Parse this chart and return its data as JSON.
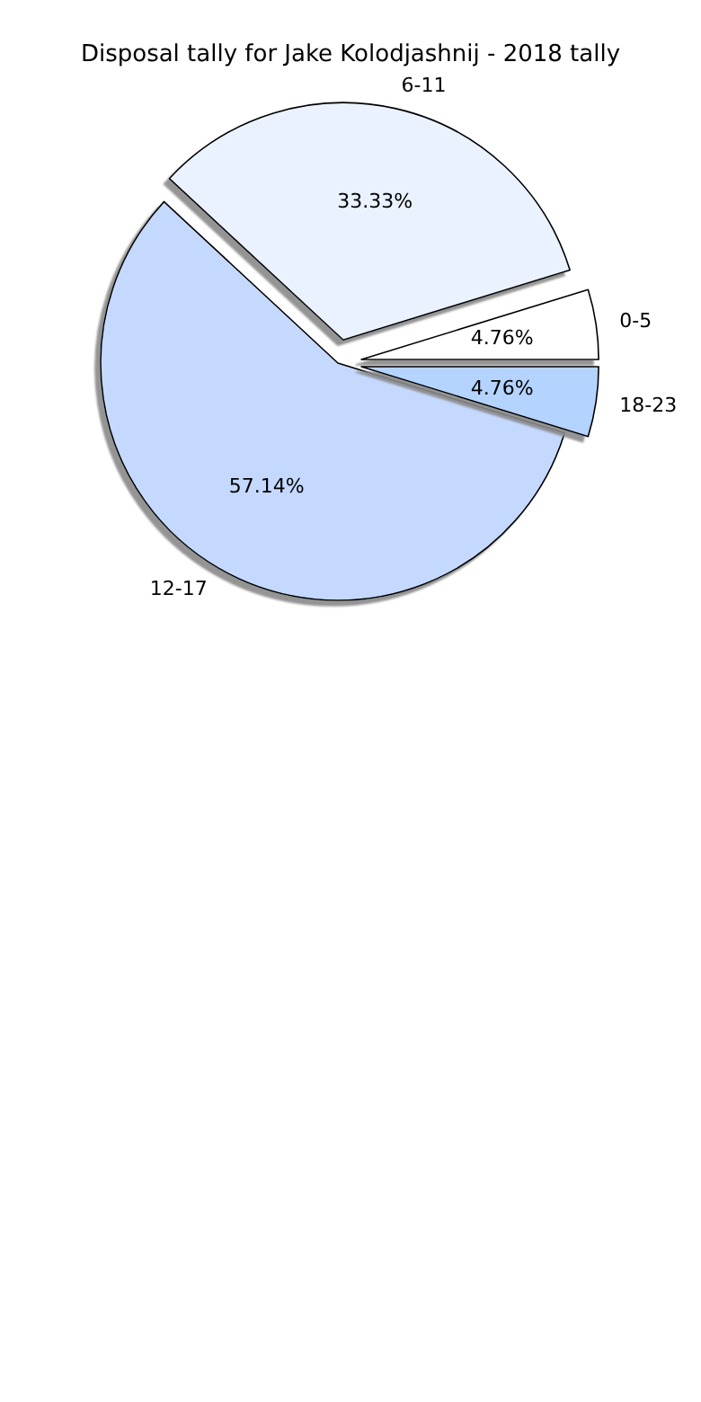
{
  "chart_data": {
    "type": "pie",
    "title": "Disposal tally for Jake Kolodjashnij - 2018 tally",
    "categories": [
      "0-5",
      "6-11",
      "12-17",
      "18-23"
    ],
    "values": [
      4.76,
      33.33,
      57.14,
      4.76
    ],
    "value_labels": [
      "4.76%",
      "33.33%",
      "57.14%",
      "4.76%"
    ],
    "colors": [
      "#ffffff",
      "#eaf2ff",
      "#c5d9ff",
      "#b5d3ff"
    ]
  }
}
